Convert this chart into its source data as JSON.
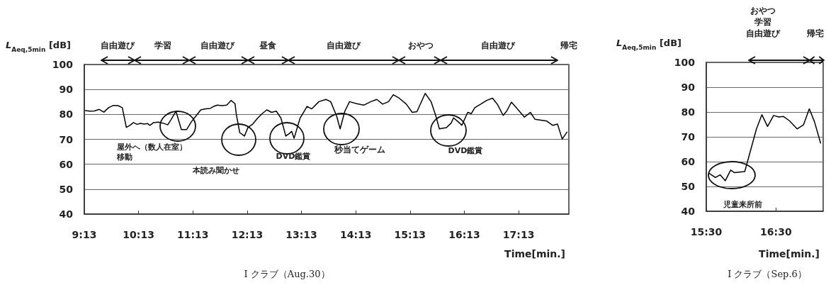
{
  "chart_data": [
    {
      "type": "line",
      "title": "I クラブ（Aug.30）",
      "xlabel": "Time[min.]",
      "ylabel": "L$_{Aeq,5min}$ [dB]",
      "xlim": [
        9.217,
        18.142
      ],
      "xticks": [
        {
          "value": 9.217,
          "label": "9:13"
        },
        {
          "value": 10.217,
          "label": "10:13"
        },
        {
          "value": 11.217,
          "label": "11:13"
        },
        {
          "value": 12.217,
          "label": "12:13"
        },
        {
          "value": 13.217,
          "label": "13:13"
        },
        {
          "value": 14.217,
          "label": "14:13"
        },
        {
          "value": 15.217,
          "label": "15:13"
        },
        {
          "value": 16.217,
          "label": "16:13"
        },
        {
          "value": 17.217,
          "label": "17:13"
        }
      ],
      "ylim": [
        40,
        100
      ],
      "yticks": [
        40,
        50,
        60,
        70,
        80,
        90,
        100
      ],
      "grid": "y",
      "marker": "none",
      "line_style": "solid",
      "series": [
        {
          "color": "#000000",
          "x": [
            9.239,
            9.317,
            9.404,
            9.491,
            9.578,
            9.665,
            9.752,
            9.839,
            9.917,
            9.991,
            10.056,
            10.122,
            10.187,
            10.252,
            10.317,
            10.383,
            10.426,
            10.492,
            10.579,
            10.666,
            10.753,
            10.818,
            10.905,
            11.005,
            11.101,
            11.188,
            11.275,
            11.362,
            11.449,
            11.536,
            11.601,
            11.666,
            11.753,
            11.841,
            11.919,
            11.993,
            12.015,
            12.08,
            12.167,
            12.232,
            12.319,
            12.406,
            12.493,
            12.58,
            12.667,
            12.754,
            12.841,
            12.928,
            12.994,
            13.037,
            13.081,
            13.19,
            13.32,
            13.407,
            13.538,
            13.668,
            13.755,
            13.864,
            13.929,
            14.016,
            14.103,
            14.234,
            14.364,
            14.495,
            14.604,
            14.713,
            14.821,
            14.908,
            15.017,
            15.148,
            15.257,
            15.344,
            15.496,
            15.605,
            15.692,
            15.757,
            15.887,
            15.974,
            16.018,
            16.105,
            16.171,
            16.279,
            16.345,
            16.41,
            16.519,
            16.627,
            16.736,
            16.824,
            16.932,
            16.997,
            17.084,
            17.193,
            17.324,
            17.433,
            17.519,
            17.628,
            17.737,
            17.846,
            17.933,
            18.02,
            18.107
          ],
          "values": [
            81.5,
            81.3,
            81.4,
            82,
            80.9,
            82.7,
            83.6,
            83.5,
            82.7,
            74.8,
            75.6,
            76.7,
            76,
            76.4,
            76.1,
            76.3,
            75.6,
            76.7,
            76.9,
            76.5,
            75.8,
            78,
            81.3,
            73.9,
            73.9,
            77,
            79.4,
            81.8,
            82.2,
            82.4,
            83.2,
            83.7,
            83.5,
            83.7,
            85.6,
            84.3,
            80.3,
            72.7,
            71.3,
            74.8,
            76.1,
            78.4,
            80.3,
            81.8,
            80.8,
            81.3,
            78.4,
            71.3,
            72.3,
            73.2,
            70.4,
            78.4,
            83.2,
            82.2,
            85.1,
            86,
            85.1,
            79.4,
            74.2,
            81.3,
            85.1,
            84.3,
            83.7,
            85.1,
            86,
            84.1,
            85.1,
            87.9,
            86.5,
            84.1,
            80.8,
            81.1,
            88.4,
            85.1,
            79.4,
            74.2,
            74.7,
            76.5,
            78.6,
            77,
            75.6,
            80.8,
            80.3,
            82.7,
            84.1,
            85.6,
            86.5,
            84.1,
            79.6,
            81.3,
            84.9,
            82.2,
            78.9,
            80.8,
            78,
            77.7,
            77.3,
            75.6,
            76.1,
            70.1,
            72.9
          ]
        }
      ],
      "annotations": [
        "自由遊び",
        "学習",
        "自由遊び",
        "昼食",
        "自由遊び",
        "おやつ",
        "自由遊び",
        "帰宅",
        "屋外へ（数人在室）移動",
        "本読み聞かせ",
        "DVD鑑賞",
        "秒当てゲーム",
        "DVD鑑賞"
      ]
    },
    {
      "type": "line",
      "title": "I クラブ（Sep.6）",
      "xlabel": "Time[min.]",
      "ylabel": "L$_{Aeq,5min}$ [dB]",
      "xlim": [
        15.5,
        17.177
      ],
      "xticks": [
        {
          "value": 15.5,
          "label": "15:30"
        },
        {
          "value": 16.5,
          "label": "16:30"
        }
      ],
      "ylim": [
        40,
        100
      ],
      "yticks": [
        40,
        50,
        60,
        70,
        80,
        90,
        100
      ],
      "grid": "y",
      "marker": "none",
      "line_style": "solid",
      "series": [
        {
          "color": "#000000",
          "x": [
            15.547,
            15.631,
            15.699,
            15.773,
            15.85,
            15.901,
            16.052,
            16.22,
            16.298,
            16.379,
            16.466,
            16.54,
            16.608,
            16.692,
            16.803,
            16.894,
            16.978,
            17.052,
            17.14
          ],
          "values": [
            55.2,
            53.6,
            54.7,
            52.3,
            56.6,
            55.6,
            56,
            73.2,
            78.9,
            74.2,
            78.6,
            78,
            78.2,
            76.5,
            73.2,
            74.8,
            81.3,
            76.1,
            67.5
          ]
        }
      ],
      "annotations": [
        "おやつ学習自由遊び",
        "帰宅",
        "児童来所前"
      ]
    }
  ]
}
